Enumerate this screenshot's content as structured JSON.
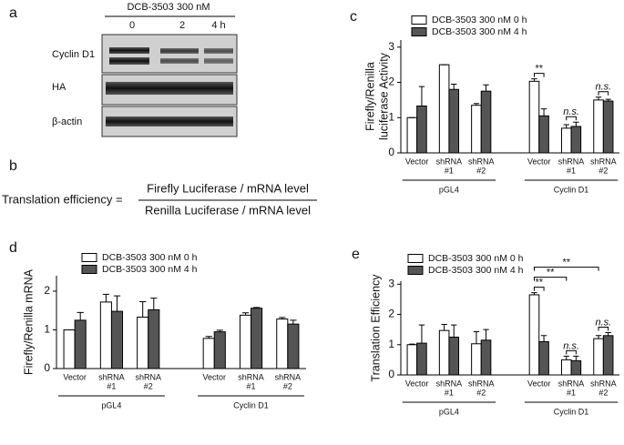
{
  "panel_a": {
    "panel_label": "a",
    "treatment": "DCB-3503 300 nM",
    "lanes": [
      "0",
      "2",
      "4 h"
    ],
    "rows": [
      "Cyclin D1",
      "HA",
      "β-actin"
    ]
  },
  "panel_b": {
    "panel_label": "b",
    "lhs": "Translation efficiency =",
    "numerator": "Firefly Luciferase / mRNA level",
    "denominator": "Renilla Luciferase / mRNA level"
  },
  "chart_data": [
    {
      "type": "bar",
      "panel_label": "c",
      "ylabel": [
        "Firefly/Renilla",
        "luciferase Activity"
      ],
      "categories": [
        [
          "Vector"
        ],
        [
          "shRNA",
          "#1"
        ],
        [
          "shRNA",
          "#2"
        ],
        [
          "Vector"
        ],
        [
          "shRNA",
          "#1"
        ],
        [
          "shRNA",
          "#2"
        ]
      ],
      "groups": [
        "pGL4",
        "Cyclin D1"
      ],
      "series": [
        {
          "name": "DCB-3503 300 nM 0 h",
          "color": "#ffffff",
          "values": [
            1.0,
            2.5,
            1.35,
            2.03,
            0.7,
            1.5
          ],
          "errors": [
            0,
            0,
            0.05,
            0.07,
            0.1,
            0.08
          ]
        },
        {
          "name": "DCB-3503 300 nM 4 h",
          "color": "#555555",
          "values": [
            1.33,
            1.8,
            1.75,
            1.05,
            0.75,
            1.47
          ],
          "errors": [
            0.55,
            0.15,
            0.18,
            0.2,
            0.12,
            0.05
          ]
        }
      ],
      "ylim": [
        0,
        3.2
      ],
      "yticks": [
        0,
        1,
        2,
        3
      ],
      "annotations": [
        {
          "text": "**",
          "from": [
            3,
            0
          ],
          "to": [
            3,
            1
          ]
        },
        {
          "text": "n.s.",
          "from": [
            4,
            0
          ],
          "to": [
            4,
            1
          ]
        },
        {
          "text": "n.s.",
          "from": [
            5,
            0
          ],
          "to": [
            5,
            1
          ]
        }
      ]
    },
    {
      "type": "bar",
      "panel_label": "d",
      "ylabel": [
        "Firefly/Renilla mRNA"
      ],
      "categories": [
        [
          "Vector"
        ],
        [
          "shRNA",
          "#1"
        ],
        [
          "shRNA",
          "#2"
        ],
        [
          "Vector"
        ],
        [
          "shRNA",
          "#1"
        ],
        [
          "shRNA",
          "#2"
        ]
      ],
      "groups": [
        "pGL4",
        "Cyclin D1"
      ],
      "series": [
        {
          "name": "DCB-3503 300 nM 0 h",
          "color": "#ffffff",
          "values": [
            1.0,
            1.72,
            1.33,
            0.78,
            1.38,
            1.28
          ],
          "errors": [
            0,
            0.2,
            0.4,
            0.05,
            0.06,
            0.04
          ]
        },
        {
          "name": "DCB-3503 300 nM 4 h",
          "color": "#555555",
          "values": [
            1.25,
            1.48,
            1.52,
            0.95,
            1.56,
            1.15
          ],
          "errors": [
            0.2,
            0.4,
            0.3,
            0.04,
            0.02,
            0.1
          ]
        }
      ],
      "ylim": [
        0,
        2.4
      ],
      "yticks": [
        0,
        1,
        2
      ],
      "annotations": []
    },
    {
      "type": "bar",
      "panel_label": "e",
      "ylabel": [
        "Translation Efficiency"
      ],
      "categories": [
        [
          "Vector"
        ],
        [
          "shRNA",
          "#1"
        ],
        [
          "shRNA",
          "#2"
        ],
        [
          "Vector"
        ],
        [
          "shRNA",
          "#1"
        ],
        [
          "shRNA",
          "#2"
        ]
      ],
      "groups": [
        "pGL4",
        "Cyclin D1"
      ],
      "series": [
        {
          "name": "DCB-3503 300 nM 0 h",
          "color": "#ffffff",
          "values": [
            1.0,
            1.47,
            1.03,
            2.65,
            0.5,
            1.2
          ],
          "errors": [
            0.02,
            0.2,
            0.4,
            0.07,
            0.12,
            0.1
          ]
        },
        {
          "name": "DCB-3503 300 nM 4 h",
          "color": "#555555",
          "values": [
            1.05,
            1.25,
            1.15,
            1.1,
            0.47,
            1.3
          ],
          "errors": [
            0.6,
            0.4,
            0.35,
            0.2,
            0.15,
            0.1
          ]
        }
      ],
      "ylim": [
        0,
        3.1
      ],
      "yticks": [
        0,
        1,
        2,
        3
      ],
      "annotations": [
        {
          "text": "**",
          "from": [
            3,
            0
          ],
          "to": [
            3,
            1
          ]
        },
        {
          "text": "n.s.",
          "from": [
            4,
            0
          ],
          "to": [
            4,
            1
          ]
        },
        {
          "text": "n.s.",
          "from": [
            5,
            0
          ],
          "to": [
            5,
            1
          ]
        },
        {
          "text": "**",
          "from": [
            3,
            0
          ],
          "to": [
            4,
            0
          ]
        },
        {
          "text": "**",
          "from": [
            3,
            0
          ],
          "to": [
            5,
            0
          ]
        }
      ]
    }
  ]
}
